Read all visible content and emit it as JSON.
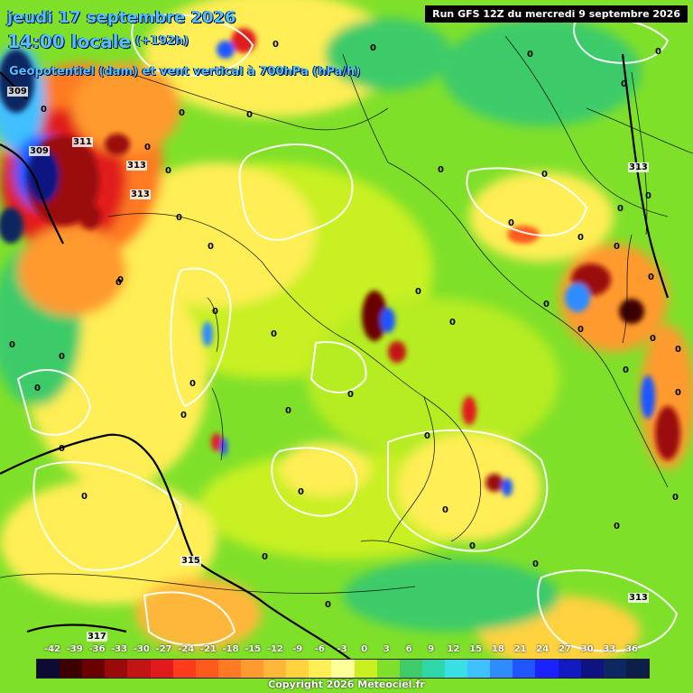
{
  "header": {
    "date": "jeudi 17 septembre 2026",
    "time": "14:00 locale",
    "lead": "(+192h)",
    "parameter": "Geopotentiel (dam) et vent vertical à 700hPa (hPa/h)",
    "run": "Run GFS 12Z du mercredi 9 septembre 2026"
  },
  "legend": {
    "ticks": [
      "-42",
      "-39",
      "-36",
      "-33",
      "-30",
      "-27",
      "-24",
      "-21",
      "-18",
      "-15",
      "-12",
      "-9",
      "-6",
      "-3",
      "0",
      "3",
      "6",
      "9",
      "12",
      "15",
      "18",
      "21",
      "24",
      "27",
      "30",
      "33",
      "36"
    ],
    "colors": [
      "#0b0b33",
      "#3d0000",
      "#6b0000",
      "#9b0a0a",
      "#c21414",
      "#e11b1b",
      "#ff3b1b",
      "#ff5a1b",
      "#ff7a24",
      "#ff9a2e",
      "#ffb73a",
      "#ffd23f",
      "#ffee55",
      "#ffff99",
      "#c8f020",
      "#7fe02a",
      "#3ecb6a",
      "#2fd6a8",
      "#38e0e6",
      "#3fc0ff",
      "#2f8cff",
      "#1f56ff",
      "#1a22ff",
      "#121bc2",
      "#0d1380",
      "#0d2760",
      "#0b1f48"
    ]
  },
  "isohypses": [
    {
      "label": "309"
    },
    {
      "label": "309"
    },
    {
      "label": "311"
    },
    {
      "label": "313"
    },
    {
      "label": "313"
    },
    {
      "label": "313"
    },
    {
      "label": "313"
    },
    {
      "label": "315"
    },
    {
      "label": "317"
    }
  ],
  "zero_label": "0",
  "copyright": "Copyright 2026 Meteociel.fr"
}
